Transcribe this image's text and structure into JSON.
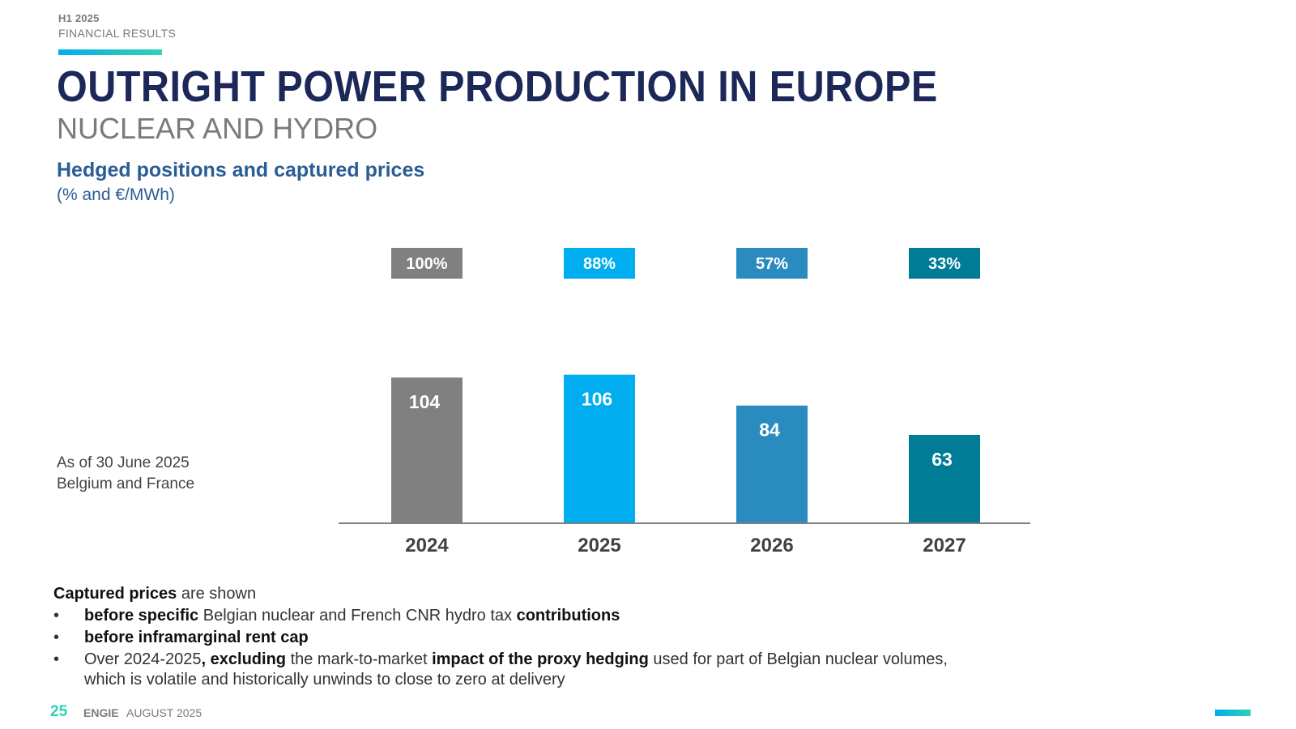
{
  "header": {
    "period": "H1 2025",
    "section": "FINANCIAL RESULTS",
    "title": "OUTRIGHT POWER PRODUCTION IN EUROPE",
    "subtitle": "NUCLEAR AND HYDRO"
  },
  "chart_heading": {
    "title": "Hedged positions and captured prices",
    "units": "(% and €/MWh)"
  },
  "side_note": {
    "line1": "As of 30 June 2025",
    "line2": "Belgium and France"
  },
  "chart_data": {
    "type": "bar",
    "title": "Hedged positions and captured prices",
    "ylabel": "€/MWh",
    "xlabel": "",
    "categories": [
      "2024",
      "2025",
      "2026",
      "2027"
    ],
    "series": [
      {
        "name": "Captured price (€/MWh)",
        "values": [
          104,
          106,
          84,
          63
        ]
      },
      {
        "name": "Hedged position (%)",
        "values": [
          100,
          88,
          57,
          33
        ]
      }
    ],
    "hedge_labels": [
      "100%",
      "88%",
      "57%",
      "33%"
    ],
    "colors": [
      "#808080",
      "#00aeef",
      "#2a8bbf",
      "#007c97"
    ],
    "ylim": [
      0,
      120
    ],
    "grid": false
  },
  "notes": {
    "intro_bold": "Captured prices",
    "intro_rest": " are shown",
    "b1_bold1": "before specific",
    "b1_text": " Belgian nuclear and French CNR hydro tax ",
    "b1_bold2": "contributions",
    "b2_bold": "before inframarginal rent cap",
    "b3_text1": "Over 2024-2025",
    "b3_bold1": ", excluding",
    "b3_text2": " the mark-to-market ",
    "b3_bold2": "impact of the proxy hedging",
    "b3_text3": " used for part of Belgian nuclear volumes,",
    "b3_text4": "which is volatile and historically unwinds to close to zero at delivery"
  },
  "footer": {
    "page": "25",
    "brand": "ENGIE",
    "date": "AUGUST 2025"
  }
}
